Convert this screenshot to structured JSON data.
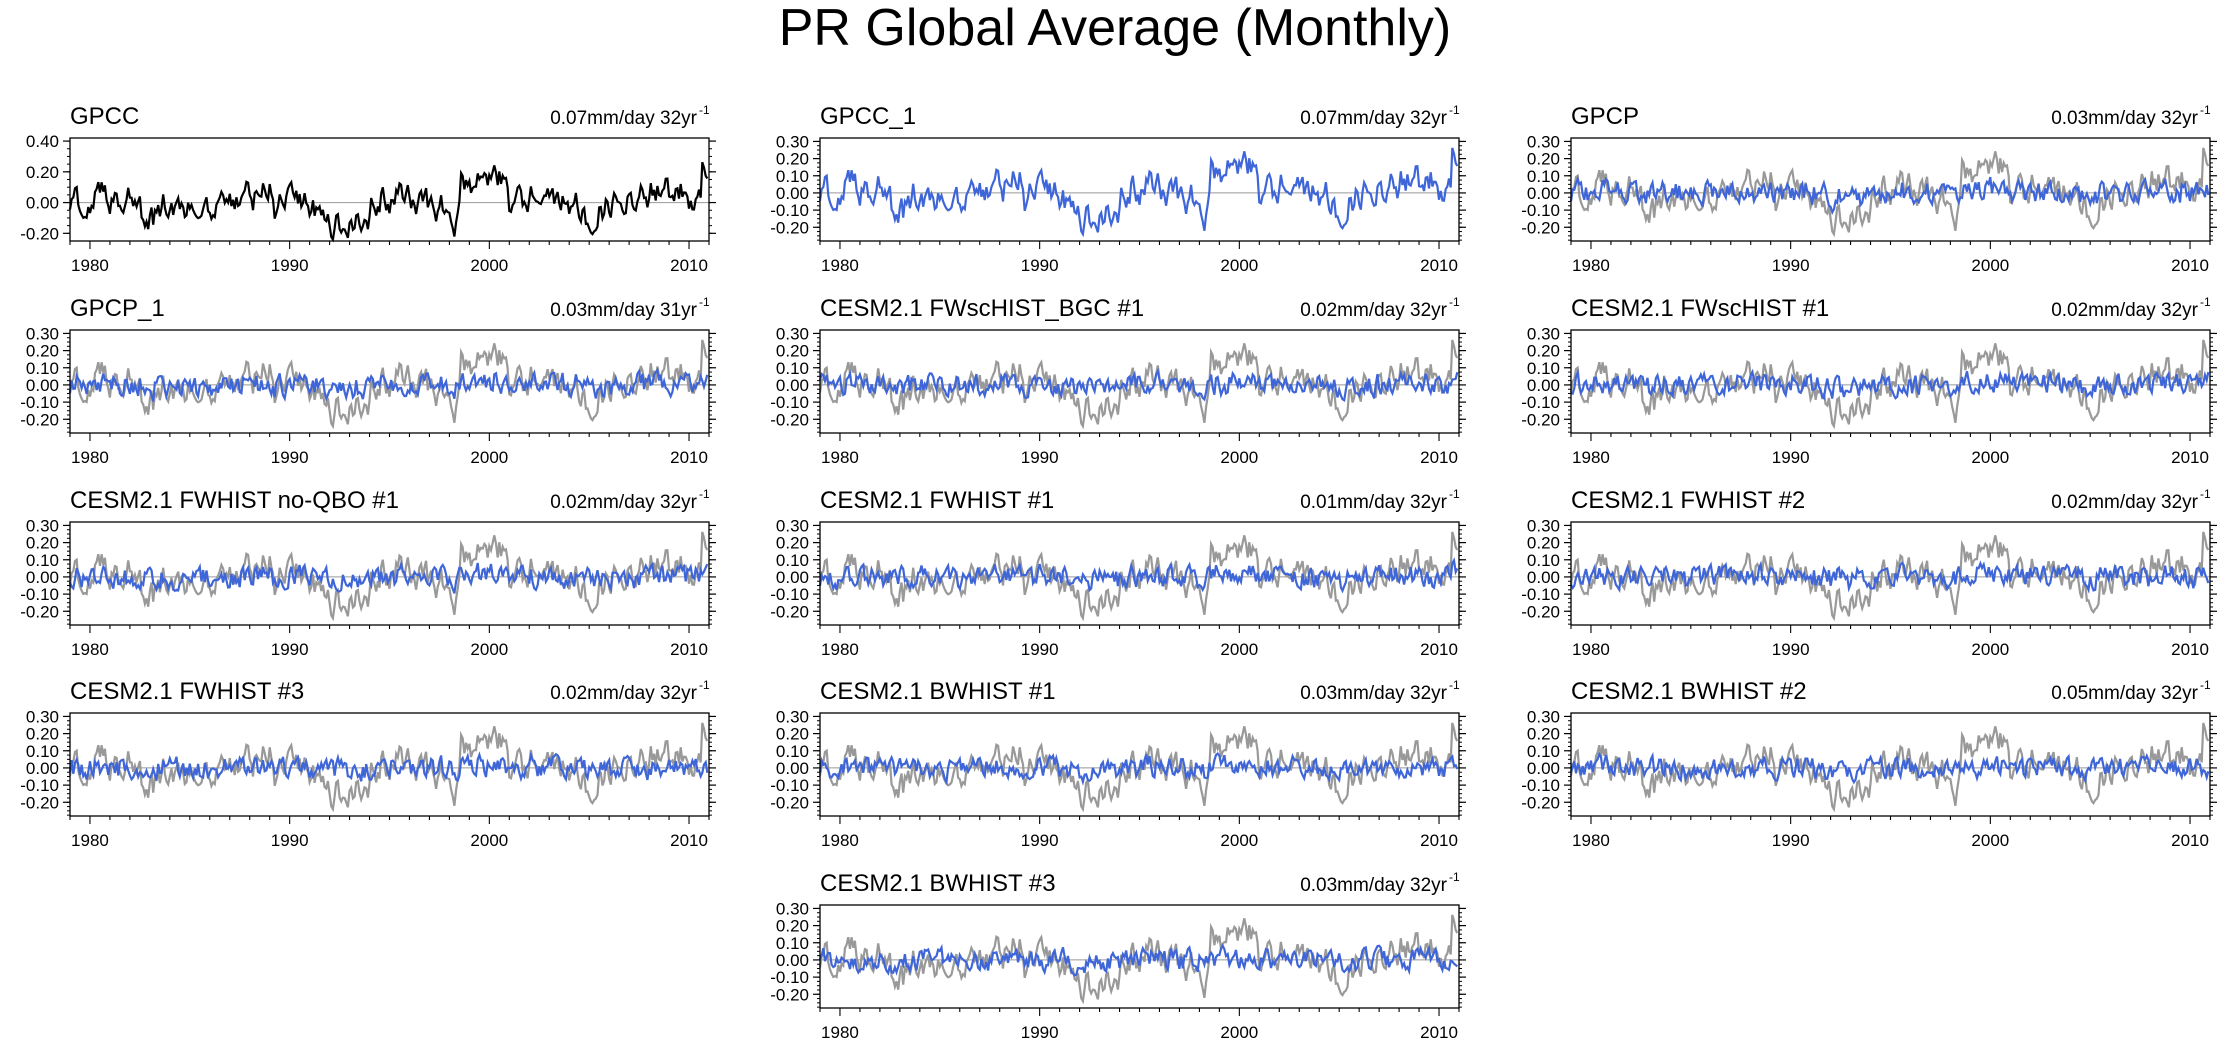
{
  "title": "PR Global Average (Monthly)",
  "colors": {
    "observation": "#000000",
    "reference": "#999999",
    "model": "#3f66d8",
    "axis": "#000000",
    "zero_line": "#999999"
  },
  "chart_data": {
    "type": "line",
    "time_range": [
      1979,
      2011
    ],
    "x_ticks": [
      "1980",
      "1990",
      "2000",
      "2010"
    ],
    "x_tick_values": [
      1980,
      1990,
      2000,
      2010
    ],
    "trend_units": "mm/day",
    "reference_series": "GPCC",
    "panels": [
      {
        "name": "GPCC",
        "trend": "0.07mm/day 32yr",
        "trend_sup": "-1",
        "y_ticks": [
          "0.40",
          "0.20",
          "0.00",
          "-0.20"
        ],
        "y_tick_values": [
          0.4,
          0.2,
          0.0,
          -0.2
        ],
        "ylim": [
          -0.25,
          0.42
        ],
        "line": "observation",
        "show_reference": false,
        "amplitude": 1.0,
        "seed": 1
      },
      {
        "name": "GPCC_1",
        "trend": "0.07mm/day 32yr",
        "trend_sup": "-1",
        "y_ticks": [
          "0.30",
          "0.20",
          "0.10",
          "0.00",
          "-0.10",
          "-0.20"
        ],
        "y_tick_values": [
          0.3,
          0.2,
          0.1,
          0.0,
          -0.1,
          -0.2
        ],
        "ylim": [
          -0.28,
          0.32
        ],
        "line": "model",
        "show_reference": false,
        "amplitude": 1.0,
        "seed": 1
      },
      {
        "name": "GPCP",
        "trend": "0.03mm/day 32yr",
        "trend_sup": "-1",
        "y_ticks": [
          "0.30",
          "0.20",
          "0.10",
          "0.00",
          "-0.10",
          "-0.20"
        ],
        "y_tick_values": [
          0.3,
          0.2,
          0.1,
          0.0,
          -0.1,
          -0.2
        ],
        "ylim": [
          -0.28,
          0.32
        ],
        "line": "model",
        "show_reference": true,
        "amplitude": 0.45,
        "seed": 3
      },
      {
        "name": "GPCP_1",
        "trend": "0.03mm/day 31yr",
        "trend_sup": "-1",
        "y_ticks": [
          "0.30",
          "0.20",
          "0.10",
          "0.00",
          "-0.10",
          "-0.20"
        ],
        "y_tick_values": [
          0.3,
          0.2,
          0.1,
          0.0,
          -0.1,
          -0.2
        ],
        "ylim": [
          -0.28,
          0.32
        ],
        "line": "model",
        "show_reference": true,
        "amplitude": 0.45,
        "seed": 4
      },
      {
        "name": "CESM2.1 FWscHIST_BGC #1",
        "trend": "0.02mm/day 32yr",
        "trend_sup": "-1",
        "y_ticks": [
          "0.30",
          "0.20",
          "0.10",
          "0.00",
          "-0.10",
          "-0.20"
        ],
        "y_tick_values": [
          0.3,
          0.2,
          0.1,
          0.0,
          -0.1,
          -0.2
        ],
        "ylim": [
          -0.28,
          0.32
        ],
        "line": "model",
        "show_reference": true,
        "amplitude": 0.3,
        "seed": 5
      },
      {
        "name": "CESM2.1 FWscHIST #1",
        "trend": "0.02mm/day 32yr",
        "trend_sup": "-1",
        "y_ticks": [
          "0.30",
          "0.20",
          "0.10",
          "0.00",
          "-0.10",
          "-0.20"
        ],
        "y_tick_values": [
          0.3,
          0.2,
          0.1,
          0.0,
          -0.1,
          -0.2
        ],
        "ylim": [
          -0.28,
          0.32
        ],
        "line": "model",
        "show_reference": true,
        "amplitude": 0.3,
        "seed": 6
      },
      {
        "name": "CESM2.1 FWHIST no-QBO #1",
        "trend": "0.02mm/day 32yr",
        "trend_sup": "-1",
        "y_ticks": [
          "0.30",
          "0.20",
          "0.10",
          "0.00",
          "-0.10",
          "-0.20"
        ],
        "y_tick_values": [
          0.3,
          0.2,
          0.1,
          0.0,
          -0.1,
          -0.2
        ],
        "ylim": [
          -0.28,
          0.32
        ],
        "line": "model",
        "show_reference": true,
        "amplitude": 0.28,
        "seed": 7
      },
      {
        "name": "CESM2.1 FWHIST #1",
        "trend": "0.01mm/day 32yr",
        "trend_sup": "-1",
        "y_ticks": [
          "0.30",
          "0.20",
          "0.10",
          "0.00",
          "-0.10",
          "-0.20"
        ],
        "y_tick_values": [
          0.3,
          0.2,
          0.1,
          0.0,
          -0.1,
          -0.2
        ],
        "ylim": [
          -0.28,
          0.32
        ],
        "line": "model",
        "show_reference": true,
        "amplitude": 0.28,
        "seed": 8
      },
      {
        "name": "CESM2.1 FWHIST #2",
        "trend": "0.02mm/day 32yr",
        "trend_sup": "-1",
        "y_ticks": [
          "0.30",
          "0.20",
          "0.10",
          "0.00",
          "-0.10",
          "-0.20"
        ],
        "y_tick_values": [
          0.3,
          0.2,
          0.1,
          0.0,
          -0.1,
          -0.2
        ],
        "ylim": [
          -0.28,
          0.32
        ],
        "line": "model",
        "show_reference": true,
        "amplitude": 0.3,
        "seed": 9
      },
      {
        "name": "CESM2.1 FWHIST #3",
        "trend": "0.02mm/day 32yr",
        "trend_sup": "-1",
        "y_ticks": [
          "0.30",
          "0.20",
          "0.10",
          "0.00",
          "-0.10",
          "-0.20"
        ],
        "y_tick_values": [
          0.3,
          0.2,
          0.1,
          0.0,
          -0.1,
          -0.2
        ],
        "ylim": [
          -0.28,
          0.32
        ],
        "line": "model",
        "show_reference": true,
        "amplitude": 0.27,
        "seed": 10
      },
      {
        "name": "CESM2.1 BWHIST #1",
        "trend": "0.03mm/day 32yr",
        "trend_sup": "-1",
        "y_ticks": [
          "0.30",
          "0.20",
          "0.10",
          "0.00",
          "-0.10",
          "-0.20"
        ],
        "y_tick_values": [
          0.3,
          0.2,
          0.1,
          0.0,
          -0.1,
          -0.2
        ],
        "ylim": [
          -0.28,
          0.32
        ],
        "line": "model",
        "show_reference": true,
        "amplitude": 0.25,
        "seed": 11
      },
      {
        "name": "CESM2.1 BWHIST #2",
        "trend": "0.05mm/day 32yr",
        "trend_sup": "-1",
        "y_ticks": [
          "0.30",
          "0.20",
          "0.10",
          "0.00",
          "-0.10",
          "-0.20"
        ],
        "y_tick_values": [
          0.3,
          0.2,
          0.1,
          0.0,
          -0.1,
          -0.2
        ],
        "ylim": [
          -0.28,
          0.32
        ],
        "line": "model",
        "show_reference": true,
        "amplitude": 0.25,
        "seed": 12
      },
      {
        "name": "CESM2.1 BWHIST #3",
        "trend": "0.03mm/day 32yr",
        "trend_sup": "-1",
        "y_ticks": [
          "0.30",
          "0.20",
          "0.10",
          "0.00",
          "-0.10",
          "-0.20"
        ],
        "y_tick_values": [
          0.3,
          0.2,
          0.1,
          0.0,
          -0.1,
          -0.2
        ],
        "ylim": [
          -0.28,
          0.32
        ],
        "line": "model",
        "show_reference": true,
        "amplitude": 0.25,
        "seed": 13
      }
    ]
  }
}
